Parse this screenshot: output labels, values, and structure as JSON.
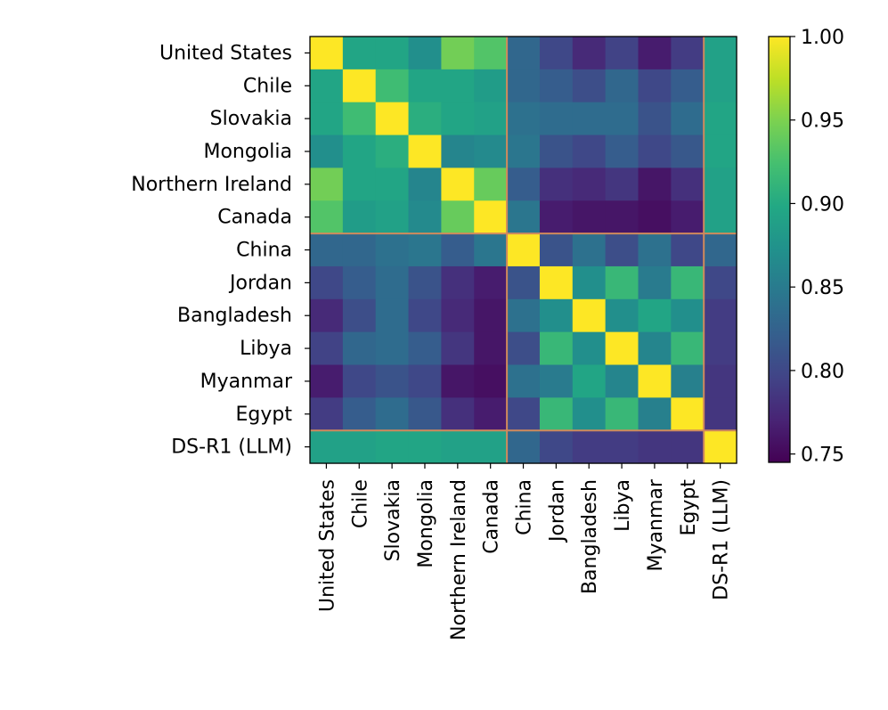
{
  "chart_data": {
    "type": "heatmap",
    "title": "",
    "xlabel": "",
    "ylabel": "",
    "labels": [
      "United States",
      "Chile",
      "Slovakia",
      "Mongolia",
      "Northern Ireland",
      "Canada",
      "China",
      "Jordan",
      "Bangladesh",
      "Libya",
      "Myanmar",
      "Egypt",
      "DS-R1 (LLM)"
    ],
    "values": [
      [
        1.0,
        0.895,
        0.895,
        0.87,
        0.945,
        0.93,
        0.83,
        0.8,
        0.775,
        0.795,
        0.765,
        0.79,
        0.89
      ],
      [
        0.895,
        1.0,
        0.92,
        0.895,
        0.895,
        0.885,
        0.83,
        0.82,
        0.805,
        0.83,
        0.8,
        0.82,
        0.89
      ],
      [
        0.895,
        0.92,
        1.0,
        0.905,
        0.895,
        0.89,
        0.84,
        0.835,
        0.835,
        0.835,
        0.81,
        0.835,
        0.895
      ],
      [
        0.87,
        0.895,
        0.905,
        1.0,
        0.86,
        0.865,
        0.845,
        0.81,
        0.8,
        0.82,
        0.8,
        0.815,
        0.895
      ],
      [
        0.945,
        0.895,
        0.895,
        0.86,
        1.0,
        0.94,
        0.82,
        0.78,
        0.775,
        0.785,
        0.76,
        0.78,
        0.89
      ],
      [
        0.93,
        0.885,
        0.89,
        0.865,
        0.94,
        1.0,
        0.845,
        0.765,
        0.76,
        0.76,
        0.755,
        0.765,
        0.89
      ],
      [
        0.83,
        0.83,
        0.84,
        0.845,
        0.82,
        0.845,
        1.0,
        0.81,
        0.84,
        0.805,
        0.84,
        0.8,
        0.83
      ],
      [
        0.8,
        0.82,
        0.835,
        0.81,
        0.78,
        0.765,
        0.81,
        1.0,
        0.87,
        0.915,
        0.85,
        0.915,
        0.8
      ],
      [
        0.775,
        0.805,
        0.835,
        0.8,
        0.775,
        0.76,
        0.84,
        0.87,
        1.0,
        0.87,
        0.895,
        0.87,
        0.79
      ],
      [
        0.795,
        0.83,
        0.835,
        0.82,
        0.785,
        0.76,
        0.805,
        0.915,
        0.87,
        1.0,
        0.86,
        0.915,
        0.79
      ],
      [
        0.765,
        0.8,
        0.81,
        0.8,
        0.76,
        0.755,
        0.84,
        0.85,
        0.895,
        0.86,
        1.0,
        0.855,
        0.785
      ],
      [
        0.79,
        0.82,
        0.835,
        0.815,
        0.78,
        0.765,
        0.8,
        0.915,
        0.87,
        0.915,
        0.855,
        1.0,
        0.785
      ],
      [
        0.89,
        0.89,
        0.895,
        0.895,
        0.89,
        0.89,
        0.83,
        0.8,
        0.79,
        0.79,
        0.785,
        0.785,
        1.0
      ]
    ],
    "group_boundaries_after_index": [
      5,
      11
    ],
    "colormap": "viridis",
    "vmin": 0.745,
    "vmax": 1.0,
    "colorbar_ticks": [
      "0.75",
      "0.80",
      "0.85",
      "0.90",
      "0.95",
      "1.00"
    ],
    "colorbar_tick_values": [
      0.75,
      0.8,
      0.85,
      0.9,
      0.95,
      1.0
    ],
    "separator_color": "#d08a5c",
    "x_tick_labels": [
      "United States",
      "Chile",
      "Slovakia",
      "Mongolia",
      "Northern Ireland",
      "Canada",
      "China",
      "Jordan",
      "Bangladesh",
      "Libya",
      "Myanmar",
      "Egypt",
      "DS-R1 (LLM)"
    ],
    "y_tick_labels": [
      "United States",
      "Chile",
      "Slovakia",
      "Mongolia",
      "Northern Ireland",
      "Canada",
      "China",
      "Jordan",
      "Bangladesh",
      "Libya",
      "Myanmar",
      "Egypt",
      "DS-R1 (LLM)"
    ]
  }
}
